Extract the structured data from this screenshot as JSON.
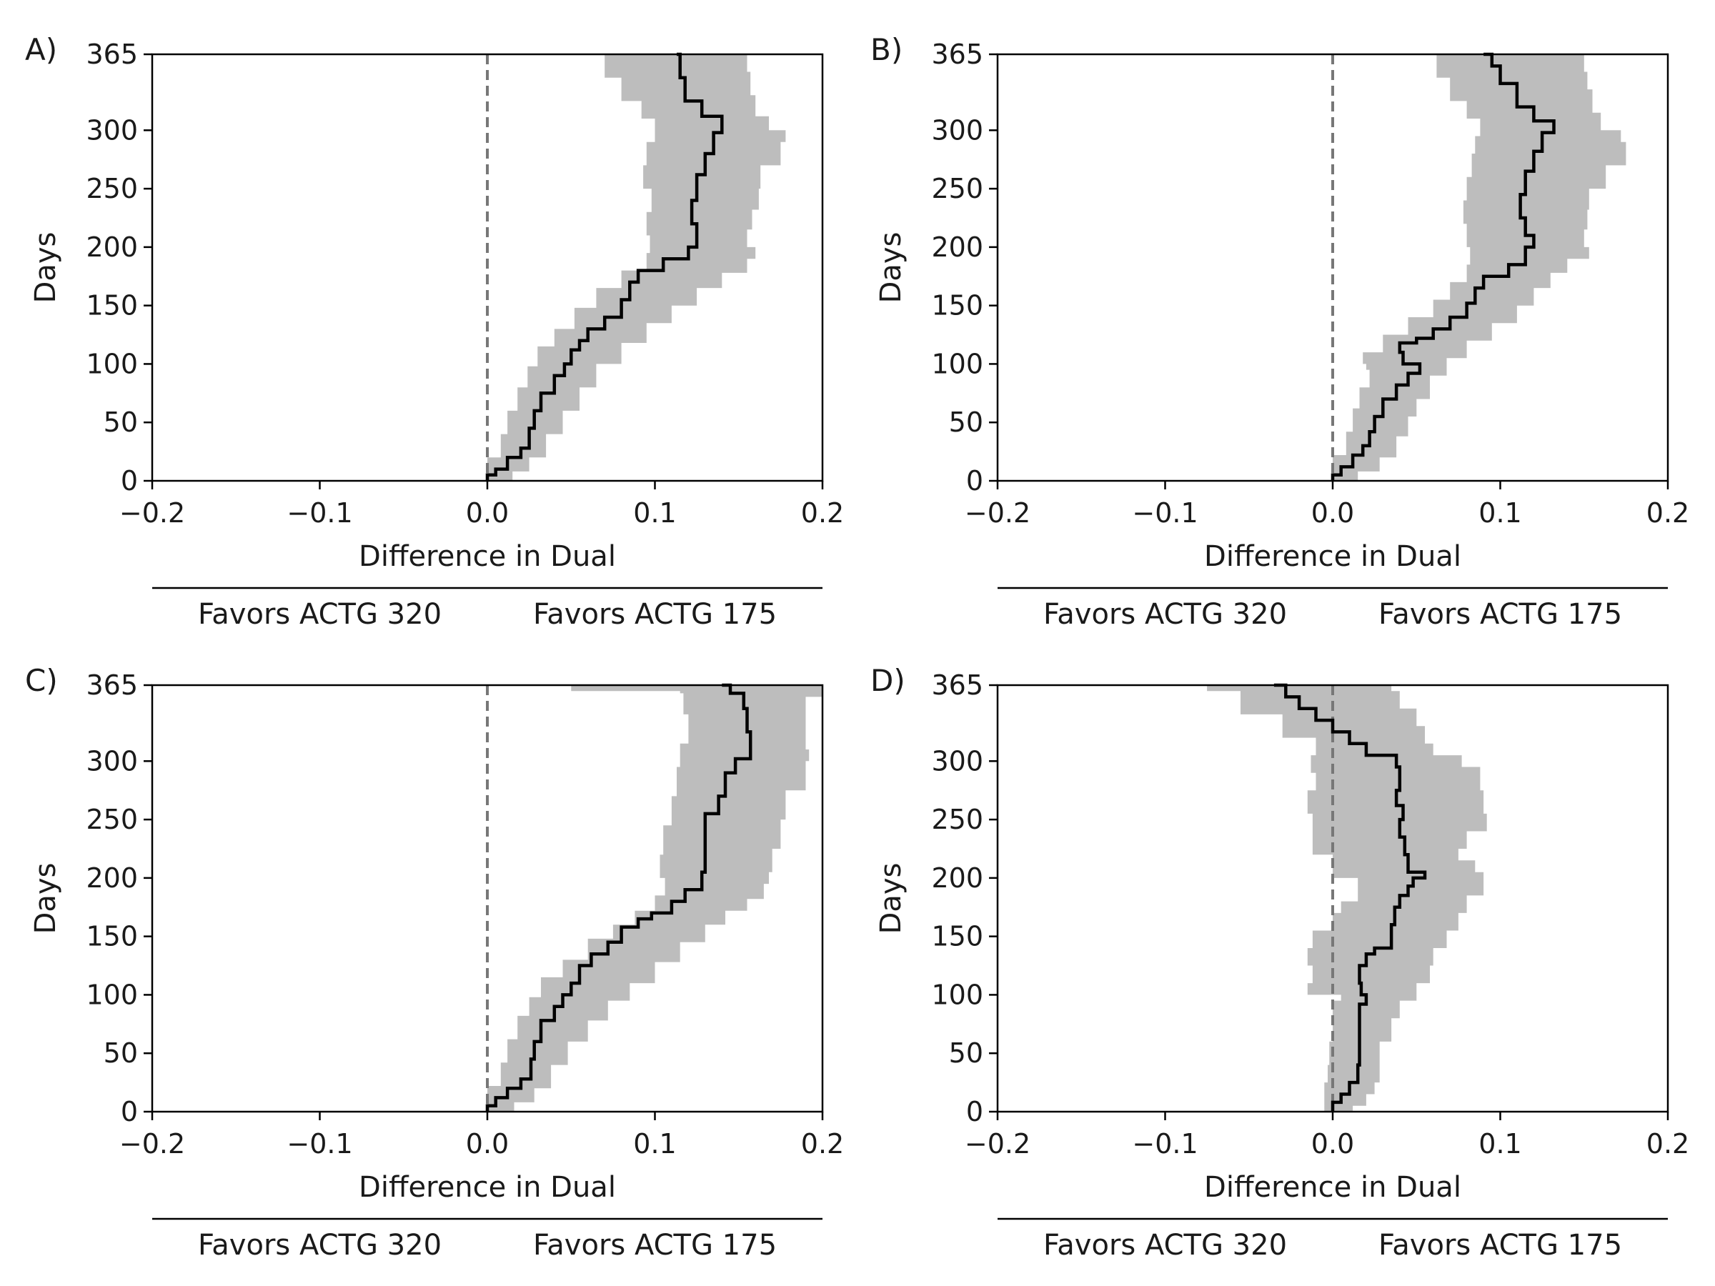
{
  "x_axis_label": "Difference in Dual",
  "y_axis_label": "Days",
  "favors_left": "Favors ACTG 320",
  "favors_right": "Favors ACTG 175",
  "colors": {
    "estimate": "#000000",
    "band": "#bdbdbd",
    "reference_line": "#777777"
  },
  "chart_data": [
    {
      "panel": "A)",
      "type": "line",
      "xlabel": "Difference in Dual",
      "ylabel": "Days",
      "xlim": [
        -0.2,
        0.2
      ],
      "ylim": [
        0,
        365
      ],
      "x_ticks": [
        "−0.2",
        "−0.1",
        "0.0",
        "0.1",
        "0.2"
      ],
      "y_ticks": [
        "0",
        "50",
        "100",
        "150",
        "200",
        "250",
        "300",
        "365"
      ],
      "reference_line_x": 0.0,
      "estimate": [
        [
          0.0,
          0
        ],
        [
          0.005,
          5
        ],
        [
          0.012,
          10
        ],
        [
          0.02,
          20
        ],
        [
          0.025,
          28
        ],
        [
          0.028,
          45
        ],
        [
          0.032,
          60
        ],
        [
          0.04,
          75
        ],
        [
          0.046,
          90
        ],
        [
          0.05,
          100
        ],
        [
          0.055,
          112
        ],
        [
          0.06,
          120
        ],
        [
          0.07,
          130
        ],
        [
          0.08,
          140
        ],
        [
          0.085,
          155
        ],
        [
          0.09,
          170
        ],
        [
          0.105,
          180
        ],
        [
          0.12,
          190
        ],
        [
          0.125,
          200
        ],
        [
          0.122,
          220
        ],
        [
          0.125,
          240
        ],
        [
          0.13,
          262
        ],
        [
          0.135,
          280
        ],
        [
          0.14,
          298
        ],
        [
          0.128,
          312
        ],
        [
          0.118,
          325
        ],
        [
          0.115,
          345
        ],
        [
          0.113,
          365
        ]
      ],
      "band_lower": [
        [
          0.0,
          0
        ],
        [
          0.0,
          10
        ],
        [
          0.008,
          20
        ],
        [
          0.012,
          40
        ],
        [
          0.018,
          60
        ],
        [
          0.024,
          80
        ],
        [
          0.03,
          98
        ],
        [
          0.04,
          115
        ],
        [
          0.052,
          130
        ],
        [
          0.065,
          148
        ],
        [
          0.08,
          165
        ],
        [
          0.095,
          180
        ],
        [
          0.097,
          195
        ],
        [
          0.095,
          210
        ],
        [
          0.098,
          230
        ],
        [
          0.093,
          250
        ],
        [
          0.095,
          270
        ],
        [
          0.1,
          290
        ],
        [
          0.092,
          310
        ],
        [
          0.08,
          325
        ],
        [
          0.07,
          345
        ],
        [
          0.067,
          365
        ]
      ],
      "band_upper": [
        [
          0.005,
          0
        ],
        [
          0.015,
          8
        ],
        [
          0.025,
          20
        ],
        [
          0.035,
          40
        ],
        [
          0.045,
          60
        ],
        [
          0.055,
          80
        ],
        [
          0.065,
          100
        ],
        [
          0.08,
          118
        ],
        [
          0.095,
          135
        ],
        [
          0.11,
          150
        ],
        [
          0.125,
          165
        ],
        [
          0.14,
          178
        ],
        [
          0.155,
          190
        ],
        [
          0.16,
          200
        ],
        [
          0.155,
          215
        ],
        [
          0.158,
          232
        ],
        [
          0.162,
          250
        ],
        [
          0.163,
          270
        ],
        [
          0.175,
          290
        ],
        [
          0.178,
          300
        ],
        [
          0.168,
          312
        ],
        [
          0.16,
          330
        ],
        [
          0.157,
          350
        ],
        [
          0.155,
          365
        ]
      ]
    },
    {
      "panel": "B)",
      "type": "line",
      "xlabel": "Difference in Dual",
      "ylabel": "Days",
      "xlim": [
        -0.2,
        0.2
      ],
      "ylim": [
        0,
        365
      ],
      "x_ticks": [
        "−0.2",
        "−0.1",
        "0.0",
        "0.1",
        "0.2"
      ],
      "y_ticks": [
        "0",
        "50",
        "100",
        "150",
        "200",
        "250",
        "300",
        "365"
      ],
      "reference_line_x": 0.0,
      "estimate": [
        [
          0.0,
          0
        ],
        [
          0.005,
          5
        ],
        [
          0.012,
          12
        ],
        [
          0.018,
          22
        ],
        [
          0.022,
          30
        ],
        [
          0.025,
          42
        ],
        [
          0.03,
          55
        ],
        [
          0.038,
          70
        ],
        [
          0.045,
          82
        ],
        [
          0.052,
          92
        ],
        [
          0.042,
          100
        ],
        [
          0.04,
          110
        ],
        [
          0.05,
          118
        ],
        [
          0.06,
          122
        ],
        [
          0.07,
          130
        ],
        [
          0.08,
          140
        ],
        [
          0.085,
          152
        ],
        [
          0.09,
          165
        ],
        [
          0.105,
          175
        ],
        [
          0.115,
          185
        ],
        [
          0.12,
          200
        ],
        [
          0.115,
          210
        ],
        [
          0.112,
          225
        ],
        [
          0.115,
          245
        ],
        [
          0.12,
          265
        ],
        [
          0.125,
          282
        ],
        [
          0.132,
          298
        ],
        [
          0.12,
          308
        ],
        [
          0.11,
          320
        ],
        [
          0.1,
          340
        ],
        [
          0.095,
          355
        ],
        [
          0.09,
          365
        ]
      ],
      "band_lower": [
        [
          0.0,
          0
        ],
        [
          0.0,
          10
        ],
        [
          0.008,
          22
        ],
        [
          0.012,
          42
        ],
        [
          0.016,
          62
        ],
        [
          0.022,
          80
        ],
        [
          0.02,
          95
        ],
        [
          0.018,
          100
        ],
        [
          0.03,
          110
        ],
        [
          0.045,
          125
        ],
        [
          0.06,
          140
        ],
        [
          0.07,
          155
        ],
        [
          0.08,
          170
        ],
        [
          0.082,
          185
        ],
        [
          0.08,
          200
        ],
        [
          0.078,
          220
        ],
        [
          0.08,
          240
        ],
        [
          0.083,
          260
        ],
        [
          0.085,
          280
        ],
        [
          0.088,
          295
        ],
        [
          0.08,
          310
        ],
        [
          0.07,
          325
        ],
        [
          0.062,
          345
        ],
        [
          0.055,
          365
        ]
      ],
      "band_upper": [
        [
          0.005,
          0
        ],
        [
          0.015,
          8
        ],
        [
          0.028,
          20
        ],
        [
          0.038,
          38
        ],
        [
          0.045,
          55
        ],
        [
          0.05,
          70
        ],
        [
          0.058,
          90
        ],
        [
          0.068,
          105
        ],
        [
          0.08,
          120
        ],
        [
          0.095,
          135
        ],
        [
          0.11,
          150
        ],
        [
          0.12,
          165
        ],
        [
          0.13,
          178
        ],
        [
          0.14,
          190
        ],
        [
          0.153,
          200
        ],
        [
          0.15,
          215
        ],
        [
          0.152,
          232
        ],
        [
          0.153,
          250
        ],
        [
          0.163,
          270
        ],
        [
          0.175,
          290
        ],
        [
          0.172,
          300
        ],
        [
          0.16,
          315
        ],
        [
          0.155,
          335
        ],
        [
          0.152,
          350
        ],
        [
          0.15,
          365
        ]
      ]
    },
    {
      "panel": "C)",
      "type": "line",
      "xlabel": "Difference in Dual",
      "ylabel": "Days",
      "xlim": [
        -0.2,
        0.2
      ],
      "ylim": [
        0,
        365
      ],
      "x_ticks": [
        "−0.2",
        "−0.1",
        "0.0",
        "0.1",
        "0.2"
      ],
      "y_ticks": [
        "0",
        "50",
        "100",
        "150",
        "200",
        "250",
        "300",
        "365"
      ],
      "reference_line_x": 0.0,
      "estimate": [
        [
          0.0,
          0
        ],
        [
          0.005,
          5
        ],
        [
          0.012,
          12
        ],
        [
          0.02,
          20
        ],
        [
          0.026,
          28
        ],
        [
          0.028,
          45
        ],
        [
          0.032,
          60
        ],
        [
          0.04,
          78
        ],
        [
          0.045,
          90
        ],
        [
          0.05,
          100
        ],
        [
          0.055,
          110
        ],
        [
          0.062,
          125
        ],
        [
          0.072,
          135
        ],
        [
          0.08,
          145
        ],
        [
          0.09,
          158
        ],
        [
          0.098,
          165
        ],
        [
          0.11,
          170
        ],
        [
          0.118,
          180
        ],
        [
          0.128,
          190
        ],
        [
          0.13,
          205
        ],
        [
          0.13,
          230
        ],
        [
          0.138,
          255
        ],
        [
          0.142,
          270
        ],
        [
          0.148,
          290
        ],
        [
          0.157,
          302
        ],
        [
          0.155,
          325
        ],
        [
          0.153,
          345
        ],
        [
          0.145,
          358
        ],
        [
          0.14,
          365
        ]
      ],
      "band_lower": [
        [
          0.0,
          0
        ],
        [
          0.0,
          10
        ],
        [
          0.008,
          22
        ],
        [
          0.012,
          42
        ],
        [
          0.018,
          62
        ],
        [
          0.025,
          82
        ],
        [
          0.032,
          98
        ],
        [
          0.045,
          115
        ],
        [
          0.06,
          130
        ],
        [
          0.075,
          148
        ],
        [
          0.088,
          160
        ],
        [
          0.1,
          172
        ],
        [
          0.106,
          185
        ],
        [
          0.103,
          200
        ],
        [
          0.105,
          220
        ],
        [
          0.11,
          245
        ],
        [
          0.113,
          270
        ],
        [
          0.115,
          295
        ],
        [
          0.12,
          315
        ],
        [
          0.117,
          340
        ],
        [
          0.115,
          358
        ],
        [
          0.05,
          360
        ],
        [
          0.05,
          365
        ]
      ],
      "band_upper": [
        [
          0.005,
          0
        ],
        [
          0.016,
          8
        ],
        [
          0.028,
          20
        ],
        [
          0.038,
          40
        ],
        [
          0.048,
          60
        ],
        [
          0.06,
          78
        ],
        [
          0.072,
          95
        ],
        [
          0.085,
          110
        ],
        [
          0.1,
          128
        ],
        [
          0.115,
          145
        ],
        [
          0.13,
          160
        ],
        [
          0.142,
          172
        ],
        [
          0.155,
          182
        ],
        [
          0.165,
          195
        ],
        [
          0.168,
          205
        ],
        [
          0.17,
          225
        ],
        [
          0.175,
          250
        ],
        [
          0.178,
          275
        ],
        [
          0.19,
          300
        ],
        [
          0.192,
          310
        ],
        [
          0.19,
          330
        ],
        [
          0.19,
          355
        ],
        [
          0.2,
          360
        ],
        [
          0.2,
          365
        ]
      ]
    },
    {
      "panel": "D)",
      "type": "line",
      "xlabel": "Difference in Dual",
      "ylabel": "Days",
      "xlim": [
        -0.2,
        0.2
      ],
      "ylim": [
        0,
        365
      ],
      "x_ticks": [
        "−0.2",
        "−0.1",
        "0.0",
        "0.1",
        "0.2"
      ],
      "y_ticks": [
        "0",
        "50",
        "100",
        "150",
        "200",
        "250",
        "300",
        "365"
      ],
      "reference_line_x": 0.0,
      "estimate": [
        [
          0.0,
          0
        ],
        [
          0.005,
          8
        ],
        [
          0.01,
          15
        ],
        [
          0.015,
          25
        ],
        [
          0.016,
          40
        ],
        [
          0.016,
          65
        ],
        [
          0.016,
          85
        ],
        [
          0.02,
          92
        ],
        [
          0.017,
          100
        ],
        [
          0.016,
          110
        ],
        [
          0.02,
          125
        ],
        [
          0.025,
          135
        ],
        [
          0.035,
          140
        ],
        [
          0.037,
          160
        ],
        [
          0.04,
          175
        ],
        [
          0.045,
          185
        ],
        [
          0.048,
          193
        ],
        [
          0.055,
          200
        ],
        [
          0.045,
          205
        ],
        [
          0.043,
          220
        ],
        [
          0.04,
          235
        ],
        [
          0.042,
          250
        ],
        [
          0.038,
          262
        ],
        [
          0.04,
          275
        ],
        [
          0.038,
          295
        ],
        [
          0.02,
          305
        ],
        [
          0.01,
          315
        ],
        [
          0.0,
          325
        ],
        [
          -0.01,
          335
        ],
        [
          -0.02,
          345
        ],
        [
          -0.028,
          355
        ],
        [
          -0.035,
          365
        ]
      ],
      "band_lower": [
        [
          -0.005,
          0
        ],
        [
          -0.005,
          10
        ],
        [
          -0.003,
          25
        ],
        [
          -0.002,
          40
        ],
        [
          0.0,
          60
        ],
        [
          0.0,
          85
        ],
        [
          0.005,
          95
        ],
        [
          -0.015,
          100
        ],
        [
          -0.012,
          110
        ],
        [
          -0.015,
          125
        ],
        [
          -0.012,
          140
        ],
        [
          0.0,
          155
        ],
        [
          0.005,
          170
        ],
        [
          0.015,
          180
        ],
        [
          0.015,
          190
        ],
        [
          0.0,
          200
        ],
        [
          0.0,
          210
        ],
        [
          -0.012,
          220
        ],
        [
          -0.012,
          240
        ],
        [
          -0.015,
          255
        ],
        [
          -0.01,
          275
        ],
        [
          -0.013,
          290
        ],
        [
          -0.01,
          305
        ],
        [
          -0.03,
          320
        ],
        [
          -0.055,
          340
        ],
        [
          -0.075,
          360
        ],
        [
          -0.1,
          365
        ]
      ],
      "band_upper": [
        [
          0.0,
          0
        ],
        [
          0.012,
          5
        ],
        [
          0.02,
          15
        ],
        [
          0.025,
          25
        ],
        [
          0.028,
          40
        ],
        [
          0.028,
          60
        ],
        [
          0.035,
          80
        ],
        [
          0.04,
          95
        ],
        [
          0.05,
          110
        ],
        [
          0.058,
          125
        ],
        [
          0.06,
          140
        ],
        [
          0.068,
          155
        ],
        [
          0.075,
          170
        ],
        [
          0.08,
          185
        ],
        [
          0.09,
          197
        ],
        [
          0.09,
          205
        ],
        [
          0.085,
          215
        ],
        [
          0.075,
          225
        ],
        [
          0.08,
          240
        ],
        [
          0.092,
          255
        ],
        [
          0.09,
          275
        ],
        [
          0.088,
          295
        ],
        [
          0.077,
          305
        ],
        [
          0.06,
          315
        ],
        [
          0.055,
          330
        ],
        [
          0.05,
          345
        ],
        [
          0.04,
          360
        ],
        [
          0.035,
          365
        ]
      ]
    }
  ]
}
